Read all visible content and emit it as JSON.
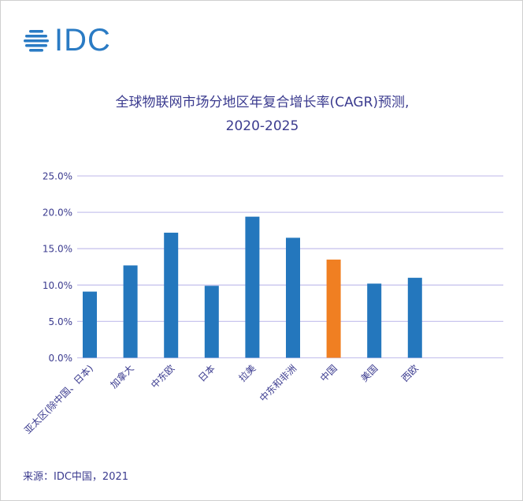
{
  "logo": {
    "text": "IDC"
  },
  "source": "来源：IDC中国，2021",
  "chart_data": {
    "type": "bar",
    "title_line1": "全球物联网市场分地区年复合增长率(CAGR)预测,",
    "title_line2": "2020-2025",
    "categories": [
      "亚太区(除中国、日本)",
      "加拿大",
      "中东欧",
      "日本",
      "拉美",
      "中东和非洲",
      "中国",
      "美国",
      "西欧"
    ],
    "values": [
      9.1,
      12.7,
      17.2,
      9.9,
      19.4,
      16.5,
      13.5,
      10.2,
      11.0
    ],
    "colors": [
      "#2477bd",
      "#2477bd",
      "#2477bd",
      "#2477bd",
      "#2477bd",
      "#2477bd",
      "#f07f22",
      "#2477bd",
      "#2477bd"
    ],
    "yticks": [
      "0.0%",
      "5.0%",
      "10.0%",
      "15.0%",
      "20.0%",
      "25.0%"
    ],
    "ylim": [
      0,
      25
    ],
    "xlabel": "",
    "ylabel": "",
    "grid": true
  }
}
